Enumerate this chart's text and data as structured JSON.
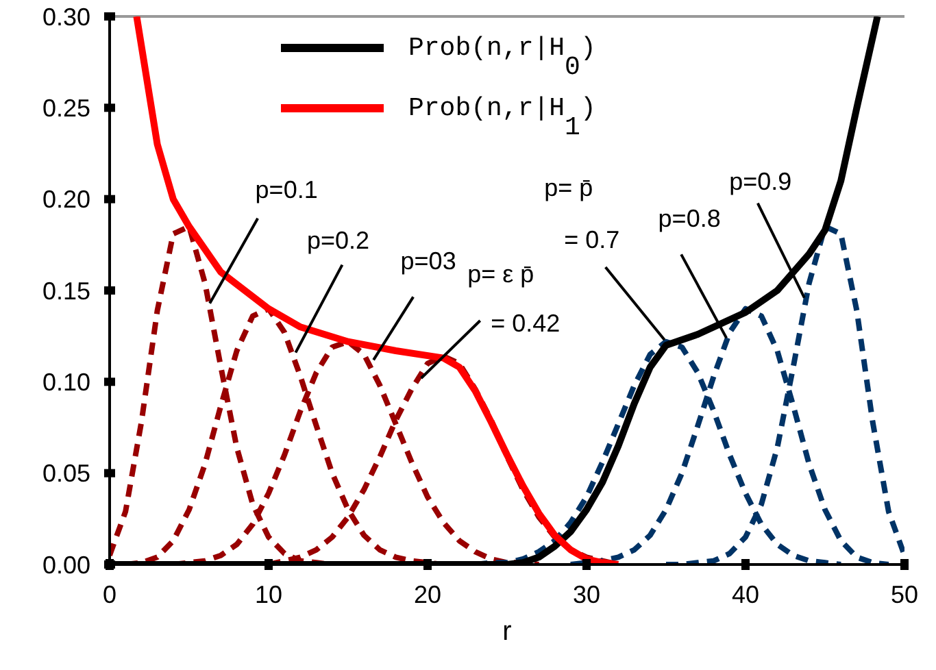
{
  "chart_data": {
    "type": "line",
    "xlabel": "r",
    "xlim": [
      0,
      50
    ],
    "ylim": [
      0,
      0.3
    ],
    "xticks": [
      0,
      10,
      20,
      30,
      40,
      50
    ],
    "yticks": [
      {
        "value": 0,
        "label": "0.00"
      },
      {
        "value": 0.05,
        "label": "0.05"
      },
      {
        "value": 0.1,
        "label": "0.10"
      },
      {
        "value": 0.15,
        "label": "0.15"
      },
      {
        "value": 0.2,
        "label": "0.20"
      },
      {
        "value": 0.25,
        "label": "0.25"
      },
      {
        "value": 0.3,
        "label": "0.30"
      }
    ],
    "grid": false,
    "legend": "top",
    "marker": "none",
    "series": [
      {
        "color": "#990000",
        "line_style": "dashed",
        "x": [
          0,
          1,
          2,
          3,
          4,
          5,
          6,
          7,
          8,
          9,
          10,
          11,
          12,
          13,
          14,
          15
        ],
        "values": [
          0.005,
          0.029,
          0.078,
          0.139,
          0.181,
          0.185,
          0.154,
          0.108,
          0.064,
          0.033,
          0.015,
          0.006,
          0.002,
          0.001,
          0,
          0
        ]
      },
      {
        "color": "#990000",
        "line_style": "dashed",
        "x": [
          1,
          2,
          3,
          4,
          5,
          6,
          7,
          8,
          9,
          10,
          11,
          12,
          13,
          14,
          15,
          16,
          17,
          18,
          19,
          20,
          21
        ],
        "values": [
          0,
          0.001,
          0.004,
          0.013,
          0.03,
          0.055,
          0.087,
          0.117,
          0.136,
          0.14,
          0.127,
          0.103,
          0.076,
          0.05,
          0.03,
          0.016,
          0.008,
          0.004,
          0.002,
          0.001,
          0
        ]
      },
      {
        "color": "#990000",
        "line_style": "dashed",
        "x": [
          4,
          5,
          6,
          7,
          8,
          9,
          10,
          11,
          12,
          13,
          14,
          15,
          16,
          17,
          18,
          19,
          20,
          21,
          22,
          23,
          24,
          25,
          26,
          27
        ],
        "values": [
          0,
          0.001,
          0.002,
          0.005,
          0.011,
          0.022,
          0.039,
          0.06,
          0.084,
          0.105,
          0.119,
          0.122,
          0.115,
          0.098,
          0.077,
          0.056,
          0.037,
          0.023,
          0.013,
          0.007,
          0.003,
          0.001,
          0.001,
          0
        ]
      },
      {
        "color": "#990000",
        "line_style": "dashed",
        "x": [
          10,
          11,
          12,
          13,
          14,
          15,
          16,
          17,
          18,
          19,
          20,
          21,
          22,
          23,
          24,
          25,
          26,
          27,
          28,
          29,
          30,
          31,
          32
        ],
        "values": [
          0,
          0.002,
          0.004,
          0.008,
          0.015,
          0.026,
          0.041,
          0.059,
          0.079,
          0.096,
          0.11,
          0.114,
          0.11,
          0.096,
          0.079,
          0.059,
          0.041,
          0.026,
          0.015,
          0.008,
          0.004,
          0.002,
          0
        ]
      },
      {
        "color": "#003366",
        "line_style": "dashed",
        "x": [
          23,
          24,
          25,
          26,
          27,
          28,
          29,
          30,
          31,
          32,
          33,
          34,
          35,
          36,
          37,
          38,
          39,
          40,
          41,
          42,
          43,
          44,
          45,
          46
        ],
        "values": [
          0,
          0.001,
          0.001,
          0.003,
          0.007,
          0.013,
          0.023,
          0.037,
          0.056,
          0.077,
          0.098,
          0.115,
          0.122,
          0.119,
          0.105,
          0.084,
          0.06,
          0.039,
          0.022,
          0.011,
          0.005,
          0.002,
          0.001,
          0
        ]
      },
      {
        "color": "#003366",
        "line_style": "dashed",
        "x": [
          29,
          30,
          31,
          32,
          33,
          34,
          35,
          36,
          37,
          38,
          39,
          40,
          41,
          42,
          43,
          44,
          45,
          46,
          47,
          48,
          49
        ],
        "values": [
          0,
          0.001,
          0.002,
          0.004,
          0.008,
          0.016,
          0.03,
          0.05,
          0.076,
          0.103,
          0.127,
          0.14,
          0.136,
          0.117,
          0.087,
          0.055,
          0.03,
          0.013,
          0.004,
          0.001,
          0
        ]
      },
      {
        "color": "#003366",
        "line_style": "dashed",
        "x": [
          35,
          36,
          37,
          38,
          39,
          40,
          41,
          42,
          43,
          44,
          45,
          46,
          47,
          48,
          49,
          50
        ],
        "values": [
          0,
          0,
          0.001,
          0.002,
          0.006,
          0.015,
          0.033,
          0.064,
          0.108,
          0.154,
          0.185,
          0.181,
          0.139,
          0.078,
          0.029,
          0.005
        ]
      },
      {
        "name": "Prob(n,r|H$_{0}$)",
        "color": "#000000",
        "line_style": "solid",
        "x": [
          0,
          25,
          26,
          27,
          28,
          29,
          30,
          31,
          32,
          33,
          34,
          35,
          37,
          40,
          42,
          44,
          45,
          46,
          47,
          48.3
        ],
        "values": [
          0,
          0,
          0.001,
          0.004,
          0.01,
          0.018,
          0.03,
          0.045,
          0.065,
          0.088,
          0.108,
          0.12,
          0.126,
          0.138,
          0.15,
          0.17,
          0.183,
          0.21,
          0.25,
          0.3
        ]
      },
      {
        "name": "Prob(n,r|H$_{1}$)",
        "color": "#ff0000",
        "line_style": "solid",
        "x": [
          1.7,
          3,
          4,
          5,
          7,
          10,
          12,
          15,
          18,
          21,
          22,
          23,
          24,
          25,
          26,
          27,
          28,
          29,
          30,
          31,
          32
        ],
        "values": [
          0.3,
          0.23,
          0.2,
          0.185,
          0.16,
          0.14,
          0.13,
          0.122,
          0.117,
          0.113,
          0.108,
          0.095,
          0.078,
          0.06,
          0.043,
          0.028,
          0.016,
          0.008,
          0.003,
          0.001,
          0
        ]
      }
    ],
    "annotations": [
      {
        "text": "p=0.1",
        "x": 6.3,
        "y": 0.143
      },
      {
        "text": "p=0.2",
        "x": 11.7,
        "y": 0.116
      },
      {
        "text": "p=03",
        "x": 16.6,
        "y": 0.112
      },
      {
        "text": "p= ε p̄\n= 0.42",
        "x": 19.6,
        "y": 0.102
      },
      {
        "text": "p= p̄\n= 0.7",
        "x": 34.9,
        "y": 0.123
      },
      {
        "text": "p=0.8",
        "x": 38.8,
        "y": 0.124
      },
      {
        "text": "p=0.9",
        "x": 43.7,
        "y": 0.146
      }
    ]
  }
}
